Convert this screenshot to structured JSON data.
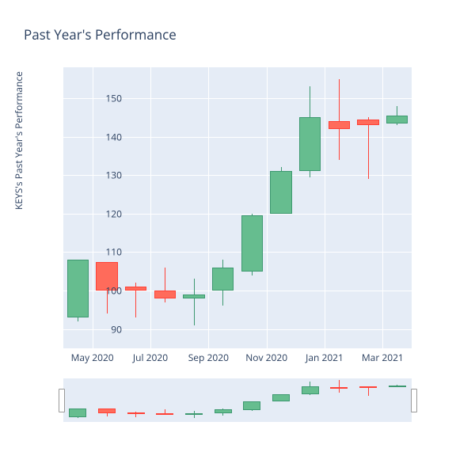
{
  "title": "Past Year's Performance",
  "ylabel": "KEYS's Past Year's Performance",
  "chart": {
    "type": "candlestick",
    "background_color": "#e5ecf6",
    "grid_color": "#ffffff",
    "up_fill": "#66bd8f",
    "up_line": "#3d9970",
    "down_fill": "#ff6b5b",
    "down_line": "#ff4136",
    "ylim": [
      85,
      158
    ],
    "yticks": [
      90,
      100,
      110,
      120,
      130,
      140,
      150
    ],
    "xticks": [
      "May 2020",
      "Jul 2020",
      "Sep 2020",
      "Nov 2020",
      "Jan 2021",
      "Mar 2021"
    ],
    "xtick_positions": [
      0.5,
      2.5,
      4.5,
      6.5,
      8.5,
      10.5
    ],
    "candles": [
      {
        "open": 93,
        "high": 108,
        "low": 92,
        "close": 108,
        "dir": "up"
      },
      {
        "open": 107.5,
        "high": 107.5,
        "low": 94,
        "close": 100,
        "dir": "down"
      },
      {
        "open": 101,
        "high": 102,
        "low": 93,
        "close": 100,
        "dir": "down"
      },
      {
        "open": 100,
        "high": 106,
        "low": 97,
        "close": 98,
        "dir": "down"
      },
      {
        "open": 98,
        "high": 103,
        "low": 91,
        "close": 99,
        "dir": "up"
      },
      {
        "open": 100,
        "high": 108,
        "low": 96,
        "close": 106,
        "dir": "up"
      },
      {
        "open": 105,
        "high": 120,
        "low": 104,
        "close": 119.5,
        "dir": "up"
      },
      {
        "open": 120,
        "high": 132,
        "low": 120,
        "close": 131,
        "dir": "up"
      },
      {
        "open": 131,
        "high": 153,
        "low": 129.5,
        "close": 145,
        "dir": "up"
      },
      {
        "open": 144,
        "high": 155,
        "low": 134,
        "close": 142,
        "dir": "down"
      },
      {
        "open": 144.5,
        "high": 145,
        "low": 129,
        "close": 143,
        "dir": "down"
      },
      {
        "open": 143.5,
        "high": 148,
        "low": 143,
        "close": 145.5,
        "dir": "up"
      }
    ],
    "title_fontsize": 17,
    "label_fontsize": 12,
    "tick_fontsize": 12
  }
}
